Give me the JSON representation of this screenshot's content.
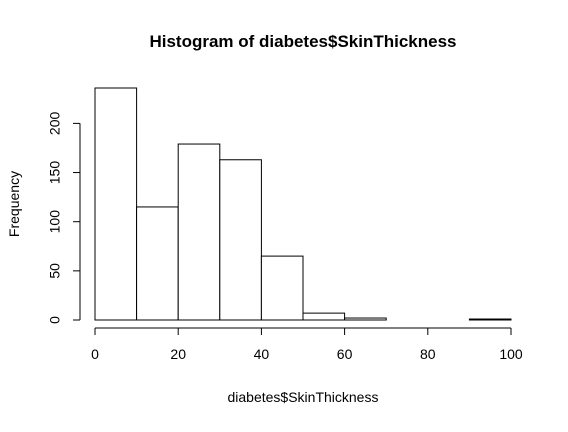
{
  "chart_data": {
    "type": "bar",
    "title": "Histogram of diabetes$SkinThickness",
    "xlabel": "diabetes$SkinThickness",
    "ylabel": "Frequency",
    "bins": [
      {
        "from": 0,
        "to": 10,
        "count": 236
      },
      {
        "from": 10,
        "to": 20,
        "count": 115
      },
      {
        "from": 20,
        "to": 30,
        "count": 179
      },
      {
        "from": 30,
        "to": 40,
        "count": 163
      },
      {
        "from": 40,
        "to": 50,
        "count": 65
      },
      {
        "from": 50,
        "to": 60,
        "count": 7
      },
      {
        "from": 60,
        "to": 70,
        "count": 2
      },
      {
        "from": 70,
        "to": 80,
        "count": 0
      },
      {
        "from": 80,
        "to": 90,
        "count": 0
      },
      {
        "from": 90,
        "to": 100,
        "count": 1
      }
    ],
    "xlim": [
      0,
      100
    ],
    "ylim": [
      0,
      236
    ],
    "x_ticks": [
      0,
      20,
      40,
      60,
      80,
      100
    ],
    "y_ticks": [
      0,
      50,
      100,
      150,
      200
    ],
    "grid": false,
    "legend": "none"
  }
}
